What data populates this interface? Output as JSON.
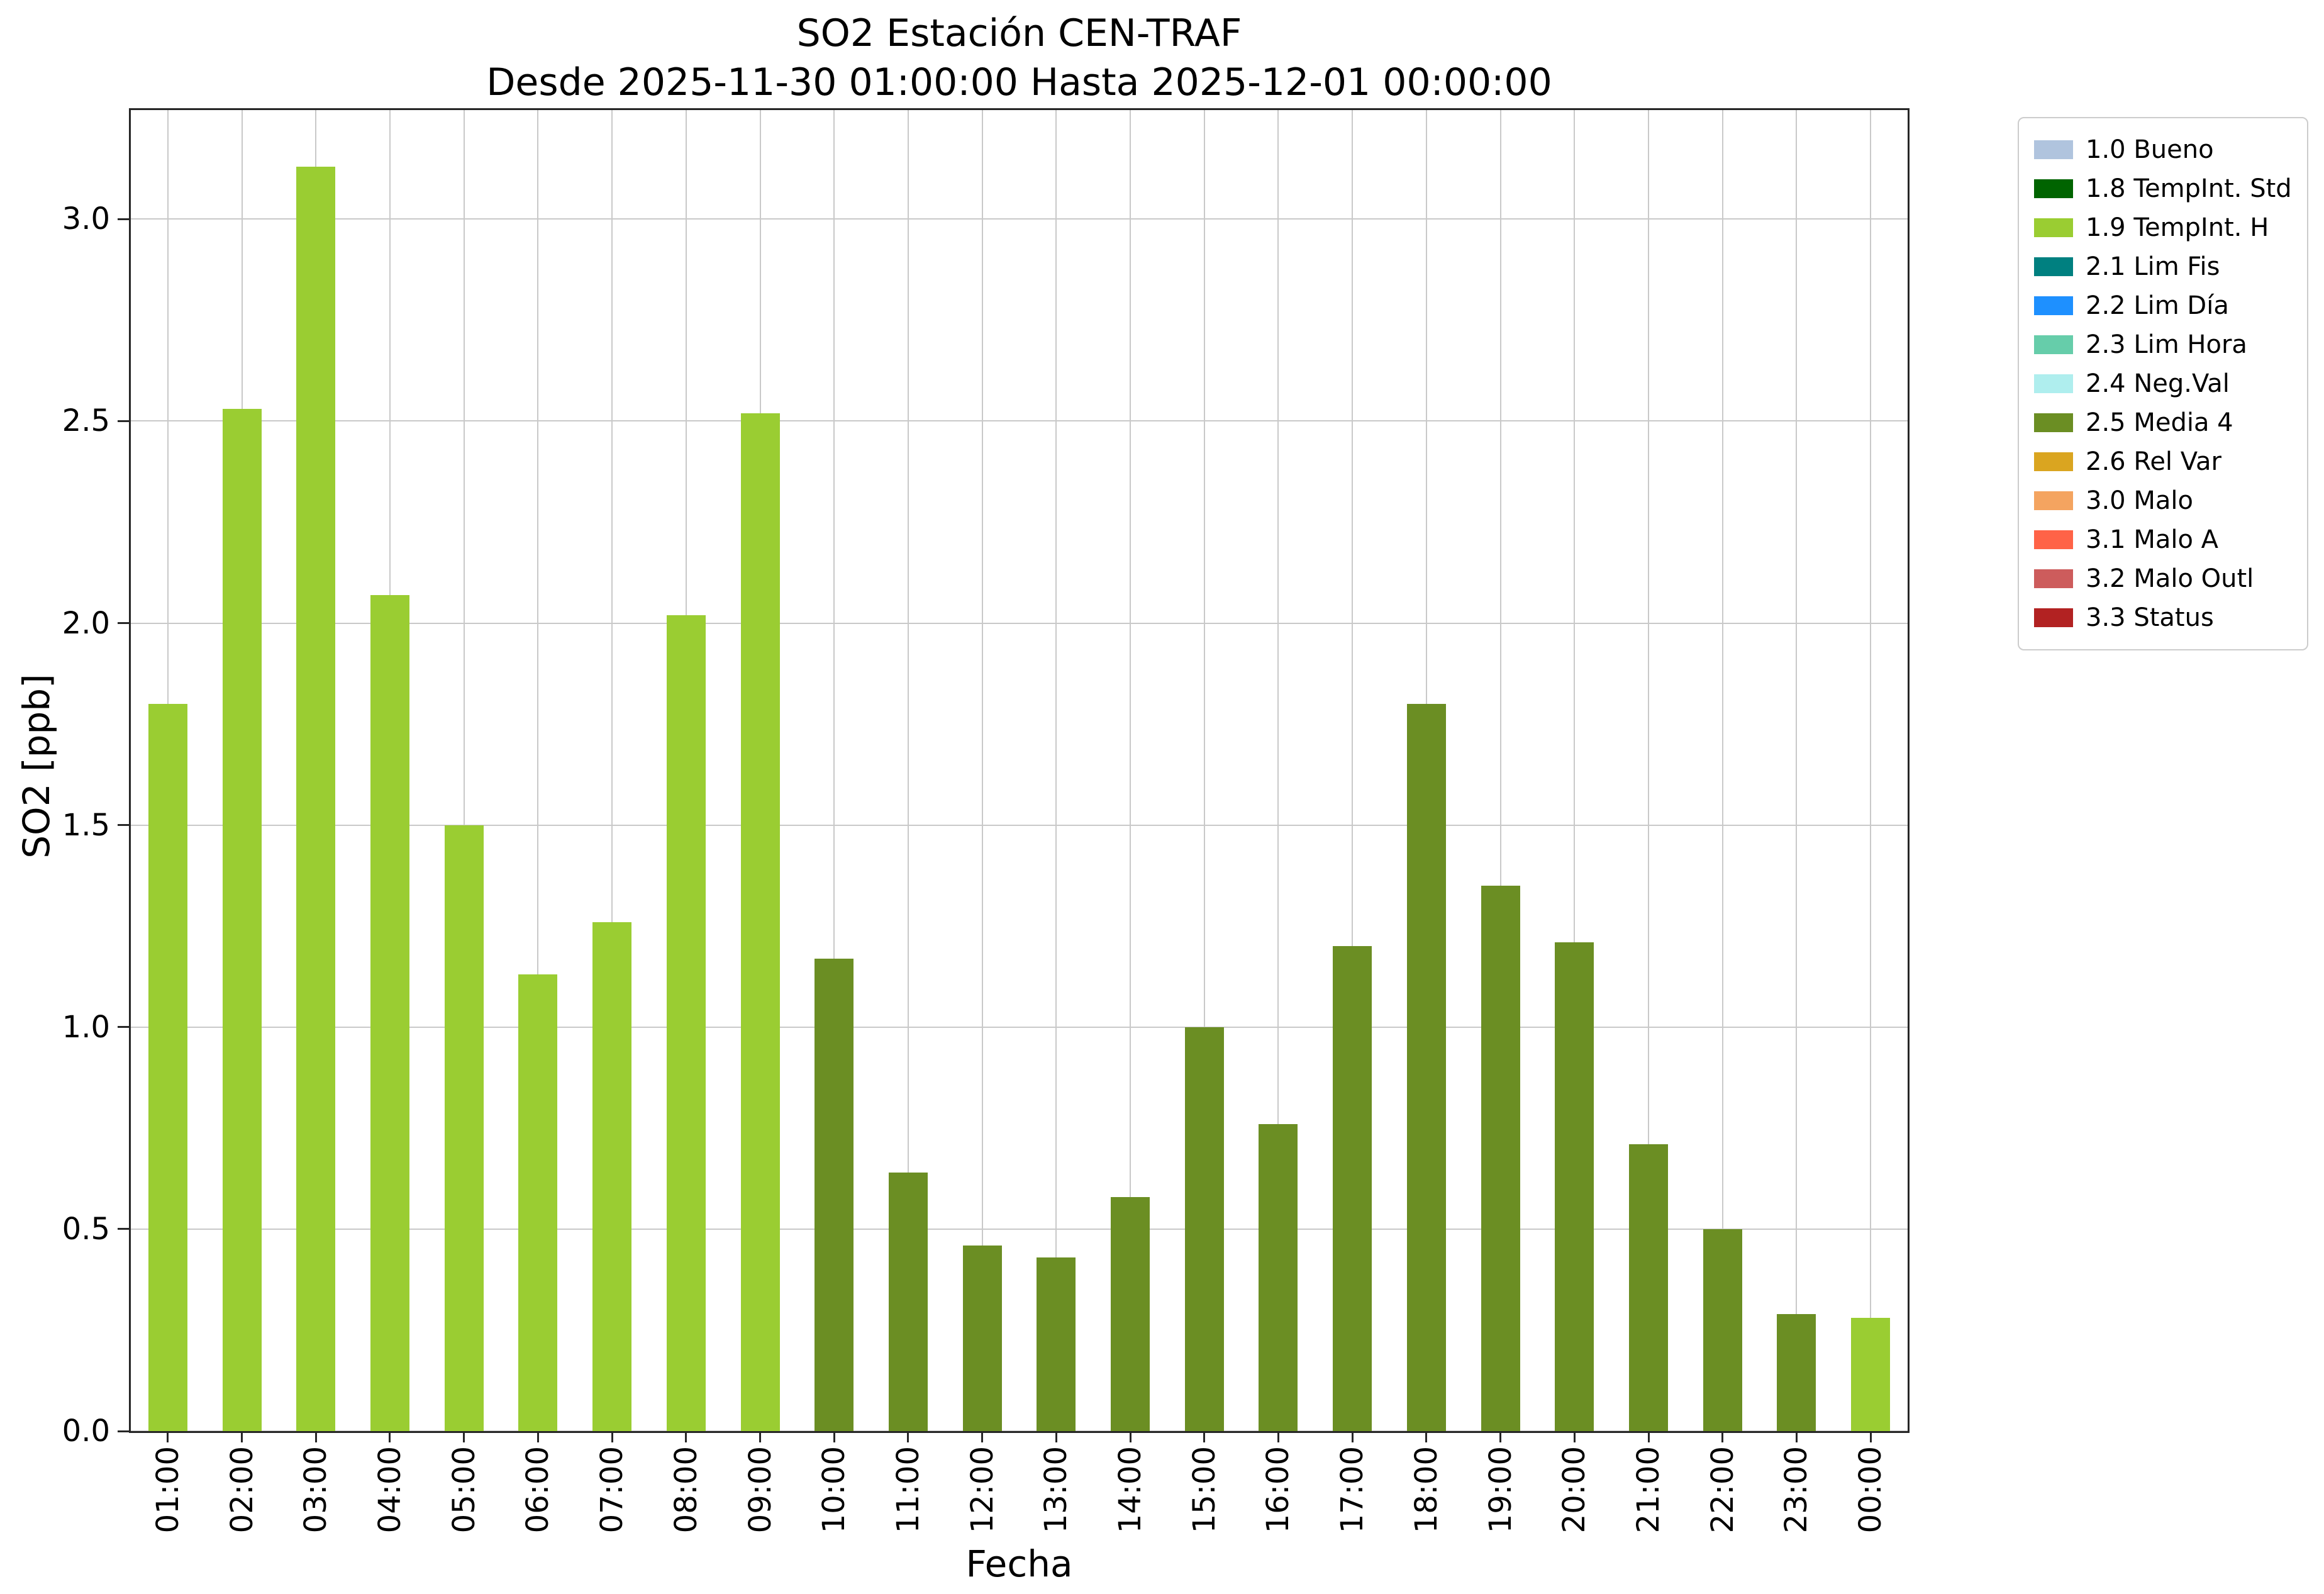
{
  "chart_data": {
    "type": "bar",
    "title": "SO2 Estación CEN-TRAF",
    "subtitle": "Desde 2025-11-30 01:00:00 Hasta 2025-12-01 00:00:00",
    "xlabel": "Fecha",
    "ylabel": "SO2 [ppb]",
    "ylim": [
      0,
      3.27
    ],
    "grid": true,
    "legend_position": "outside-upper-right",
    "yticks": [
      {
        "value": 0.0,
        "label": "0.0"
      },
      {
        "value": 0.5,
        "label": "0.5"
      },
      {
        "value": 1.0,
        "label": "1.0"
      },
      {
        "value": 1.5,
        "label": "1.5"
      },
      {
        "value": 2.0,
        "label": "2.0"
      },
      {
        "value": 2.5,
        "label": "2.5"
      },
      {
        "value": 3.0,
        "label": "3.0"
      }
    ],
    "categories": [
      "01:00",
      "02:00",
      "03:00",
      "04:00",
      "05:00",
      "06:00",
      "07:00",
      "08:00",
      "09:00",
      "10:00",
      "11:00",
      "12:00",
      "13:00",
      "14:00",
      "15:00",
      "16:00",
      "17:00",
      "18:00",
      "19:00",
      "20:00",
      "21:00",
      "22:00",
      "23:00",
      "00:00"
    ],
    "values": [
      1.8,
      2.53,
      3.13,
      2.07,
      1.5,
      1.13,
      1.26,
      2.02,
      2.52,
      1.17,
      0.64,
      0.46,
      0.43,
      0.58,
      1.0,
      0.76,
      1.2,
      1.8,
      1.35,
      1.21,
      0.71,
      0.5,
      0.29,
      0.28
    ],
    "bar_flags": [
      "1.9",
      "1.9",
      "1.9",
      "1.9",
      "1.9",
      "1.9",
      "1.9",
      "1.9",
      "1.9",
      "2.5",
      "2.5",
      "2.5",
      "2.5",
      "2.5",
      "2.5",
      "2.5",
      "2.5",
      "2.5",
      "2.5",
      "2.5",
      "2.5",
      "2.5",
      "2.5",
      "1.9"
    ],
    "palette": {
      "1.9": "#9acd32",
      "2.5": "#6b8e23"
    },
    "legend": [
      {
        "label": "1.0 Bueno",
        "color": "#b0c4de"
      },
      {
        "label": "1.8 TempInt. Std",
        "color": "#006400"
      },
      {
        "label": "1.9 TempInt. H",
        "color": "#9acd32"
      },
      {
        "label": "2.1 Lim Fis",
        "color": "#008080"
      },
      {
        "label": "2.2 Lim Día",
        "color": "#1e90ff"
      },
      {
        "label": "2.3 Lim Hora",
        "color": "#66cdaa"
      },
      {
        "label": "2.4 Neg.Val",
        "color": "#afeeee"
      },
      {
        "label": "2.5 Media 4",
        "color": "#6b8e23"
      },
      {
        "label": "2.6 Rel Var",
        "color": "#daa520"
      },
      {
        "label": "3.0 Malo",
        "color": "#f4a460"
      },
      {
        "label": "3.1 Malo A",
        "color": "#ff6347"
      },
      {
        "label": "3.2 Malo Outl",
        "color": "#cd5c5c"
      },
      {
        "label": "3.3 Status",
        "color": "#b22222"
      }
    ]
  }
}
